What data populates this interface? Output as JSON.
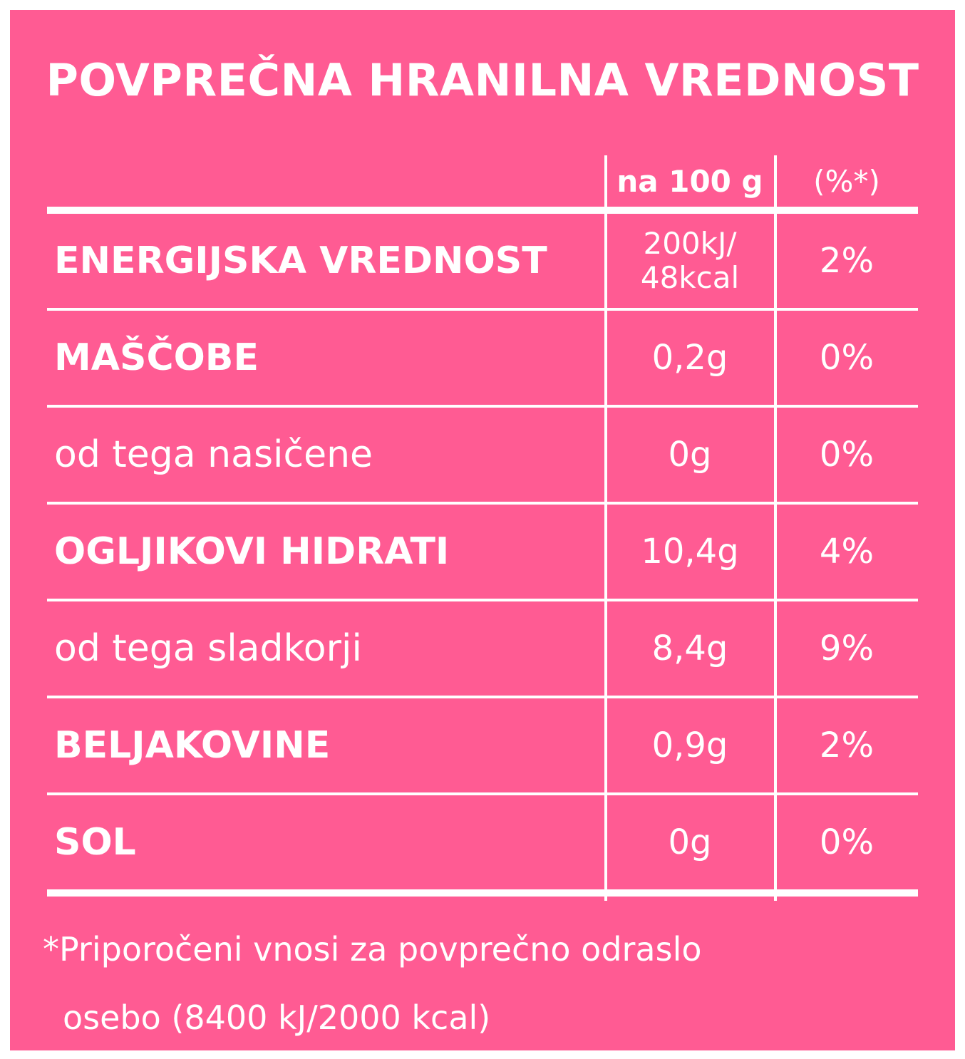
{
  "title": "POVPREČNA HRANILNA VREDNOST",
  "columns": {
    "per_100g": "na 100 g",
    "percent": "(%*)"
  },
  "rows": [
    {
      "label": "ENERGIJSKA VREDNOST",
      "style": "bold",
      "value_line1": "200kJ/",
      "value_line2": "48kcal",
      "percent": "2%"
    },
    {
      "label": "MAŠČOBE",
      "style": "bold",
      "value": "0,2g",
      "percent": "0%"
    },
    {
      "label": "od tega nasičene",
      "style": "normal",
      "value": "0g",
      "percent": "0%"
    },
    {
      "label": "OGLJIKOVI HIDRATI",
      "style": "bold",
      "value": "10,4g",
      "percent": "4%"
    },
    {
      "label": "od tega sladkorji",
      "style": "normal",
      "value": "8,4g",
      "percent": "9%"
    },
    {
      "label": "BELJAKOVINE",
      "style": "bold",
      "value": "0,9g",
      "percent": "2%"
    },
    {
      "label": "SOL",
      "style": "bold",
      "value": "0g",
      "percent": "0%"
    }
  ],
  "footnote": {
    "line1": "*Priporočeni vnosi za povprečno odraslo",
    "line2": "osebo (8400 kJ/2000 kcal)"
  },
  "colors": {
    "background": "#ff5b93",
    "text": "#ffffff"
  }
}
